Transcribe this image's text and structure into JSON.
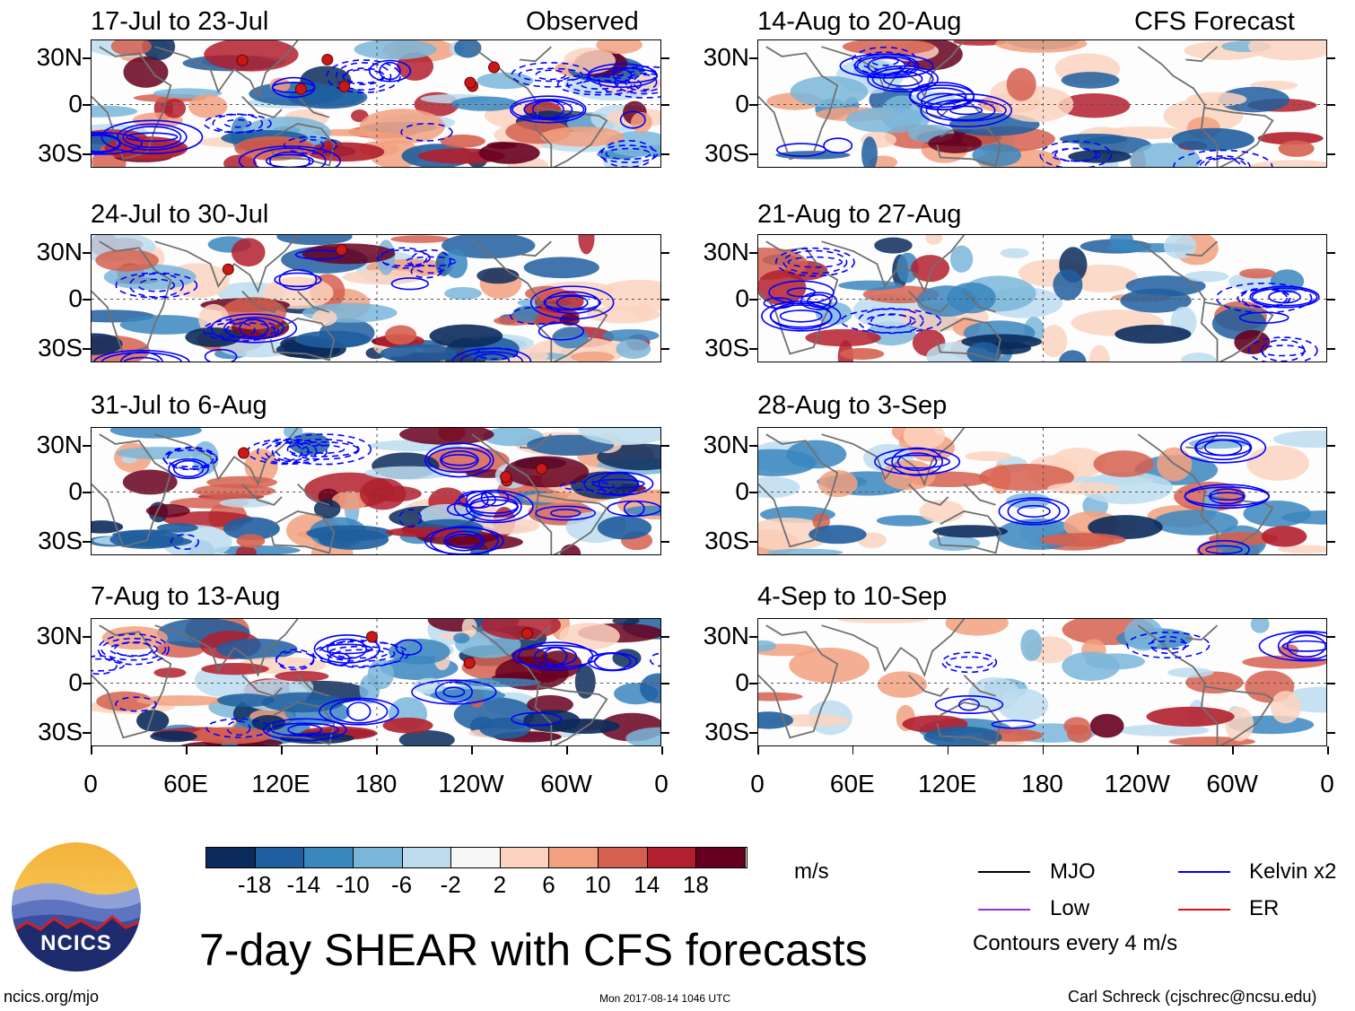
{
  "colors": {
    "colorbar": [
      "#0b2b5c",
      "#1f5e9f",
      "#3a86be",
      "#7ab6d9",
      "#bcdcee",
      "#f7f7f7",
      "#fbd3bf",
      "#f2a07f",
      "#d5604f",
      "#b21f2d",
      "#67001f"
    ],
    "mjo": "#000000",
    "kelvin": "#0000ff",
    "low": "#9b30d9",
    "er": "#e01010",
    "coast": "#707070"
  },
  "left_header": "Observed",
  "right_header": "CFS Forecast",
  "panels_left": [
    {
      "title": "17-Jul to 23-Jul"
    },
    {
      "title": "24-Jul to 30-Jul"
    },
    {
      "title": "31-Jul to 6-Aug"
    },
    {
      "title": "7-Aug to 13-Aug"
    }
  ],
  "panels_right": [
    {
      "title": "14-Aug to 20-Aug"
    },
    {
      "title": "21-Aug to 27-Aug"
    },
    {
      "title": "28-Aug to 3-Sep"
    },
    {
      "title": "4-Sep to 10-Sep"
    }
  ],
  "y_ticks": [
    "30N",
    "0",
    "30S"
  ],
  "x_ticks": [
    "0",
    "60E",
    "120E",
    "180",
    "120W",
    "60W",
    "0"
  ],
  "colorbar": {
    "labels": [
      "-18",
      "-14",
      "-10",
      "-6",
      "-2",
      "2",
      "6",
      "10",
      "14",
      "18"
    ],
    "units": "m/s"
  },
  "legend": {
    "mjo": "MJO",
    "kelvin": "Kelvin x2",
    "low": "Low",
    "er": "ER",
    "contours": "Contours every 4 m/s"
  },
  "main_title": "7-day SHEAR with CFS forecasts",
  "logo_text": "NCICS",
  "footer": {
    "url": "ncics.org/mjo",
    "timestamp": "Mon 2017-08-14 1046 UTC",
    "author": "Carl Schreck (cjschrec@ncsu.edu)"
  },
  "chart_data": {
    "type": "heatmap",
    "title": "7-day SHEAR with CFS forecasts",
    "variable": "Vertical wind shear anomaly (m/s)",
    "x_domain": "longitude 0 to 360 (0, 60E, 120E, 180, 120W, 60W, 0)",
    "y_domain": "latitude 40S to 40N",
    "ylim": [
      -40,
      40
    ],
    "color_levels": [
      -18,
      -14,
      -10,
      -6,
      -2,
      2,
      6,
      10,
      14,
      18
    ],
    "contour_interval": 4,
    "series": [
      {
        "name": "MJO",
        "color": "black"
      },
      {
        "name": "Kelvin x2",
        "color": "blue"
      },
      {
        "name": "Low",
        "color": "purple"
      },
      {
        "name": "ER",
        "color": "red"
      }
    ],
    "panels": [
      {
        "period": "17-Jul to 23-Jul",
        "source": "Observed"
      },
      {
        "period": "24-Jul to 30-Jul",
        "source": "Observed"
      },
      {
        "period": "31-Jul to 6-Aug",
        "source": "Observed"
      },
      {
        "period": "7-Aug to 13-Aug",
        "source": "Observed"
      },
      {
        "period": "14-Aug to 20-Aug",
        "source": "CFS Forecast"
      },
      {
        "period": "21-Aug to 27-Aug",
        "source": "CFS Forecast"
      },
      {
        "period": "28-Aug to 3-Sep",
        "source": "CFS Forecast"
      },
      {
        "period": "4-Sep to 10-Sep",
        "source": "CFS Forecast"
      }
    ]
  }
}
